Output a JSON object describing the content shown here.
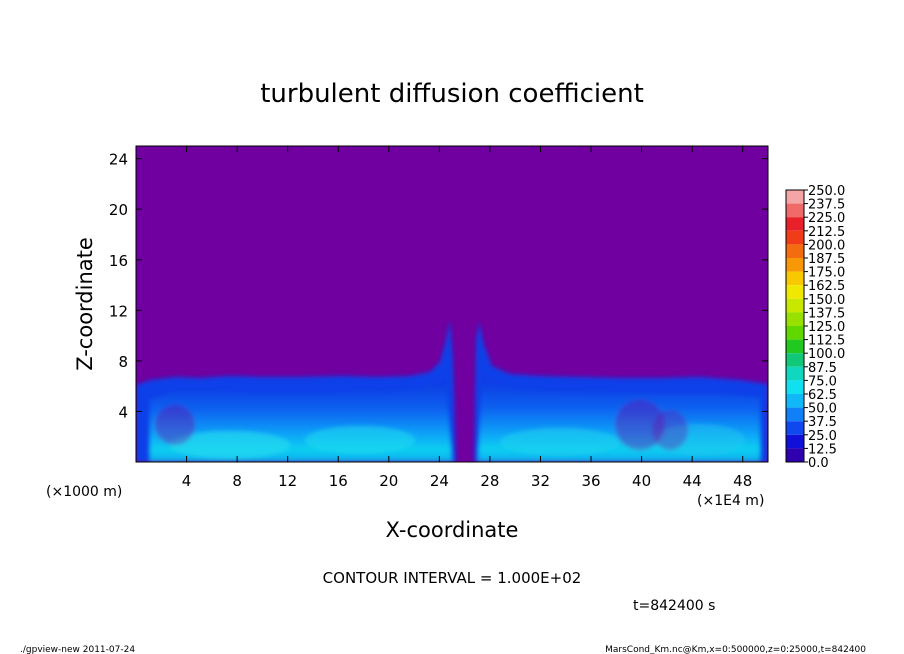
{
  "chart_data": {
    "type": "heatmap",
    "title": "turbulent diffusion coefficient",
    "xlabel": "X-coordinate",
    "ylabel": "Z-coordinate",
    "x_unit_label": "(×1E4 m)",
    "y_unit_label": "(×1000 m)",
    "xlim": [
      0,
      50
    ],
    "ylim": [
      0,
      25
    ],
    "x_ticks": [
      "4",
      "8",
      "12",
      "16",
      "20",
      "24",
      "28",
      "32",
      "36",
      "40",
      "44",
      "48"
    ],
    "y_ticks": [
      "4",
      "8",
      "12",
      "16",
      "20",
      "24"
    ],
    "x_tick_values": [
      4,
      8,
      12,
      16,
      20,
      24,
      28,
      32,
      36,
      40,
      44,
      48
    ],
    "y_tick_values": [
      4,
      8,
      12,
      16,
      20,
      24
    ],
    "colorbar": {
      "levels": [
        "250.0",
        "237.5",
        "225.0",
        "212.5",
        "200.0",
        "187.5",
        "175.0",
        "162.5",
        "150.0",
        "137.5",
        "125.0",
        "112.5",
        "100.0",
        "87.5",
        "75.0",
        "62.5",
        "50.0",
        "37.5",
        "25.0",
        "12.5",
        "0.0"
      ],
      "colors": [
        "#f4a6a6",
        "#f06a6a",
        "#e8202a",
        "#f03c18",
        "#f46c10",
        "#f89808",
        "#f8c800",
        "#f0e800",
        "#c8e800",
        "#98e000",
        "#60d800",
        "#20c820",
        "#10c878",
        "#10d8c0",
        "#10e0f0",
        "#10b8f8",
        "#1080f8",
        "#1048f0",
        "#1010d8",
        "#3000b0",
        "#7000a0"
      ]
    },
    "background_value": "0.0",
    "field_description_values": {
      "boundary_layer_top_km": 6.5,
      "central_plume_x": [
        24,
        28
      ],
      "central_plume_top_km": 12
    },
    "contour_interval_text": "CONTOUR INTERVAL = 1.000E+02",
    "time_text": "t=842400 s",
    "footer_left": "./gpview-new   2011-07-24",
    "footer_right": "MarsCond_Km.nc@Km,x=0:500000,z=0:25000,t=842400"
  }
}
